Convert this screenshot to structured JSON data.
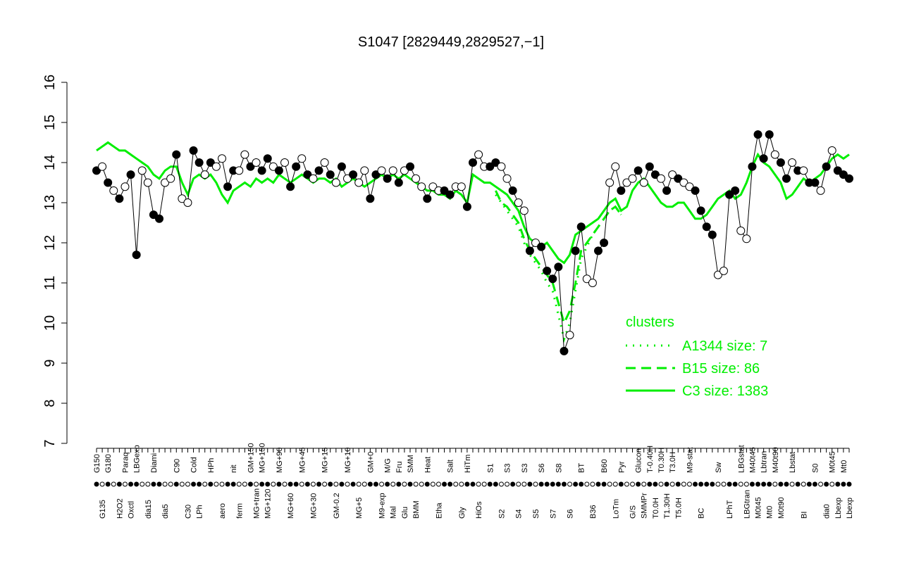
{
  "chart_data": {
    "type": "line",
    "title": "S1047 [2829449,2829527,−1]",
    "legend_title": "clusters",
    "ylim": [
      7,
      16
    ],
    "yticks": [
      7,
      8,
      9,
      10,
      11,
      12,
      13,
      14,
      15,
      16
    ],
    "categories": [
      "G150",
      "G135",
      "G180",
      null,
      "H2O2",
      "Paraq",
      "Oxctl",
      "LBGexp",
      null,
      "dia15",
      "Diami",
      null,
      "dia5",
      null,
      "C90",
      null,
      "C30",
      "Cold",
      "LPh",
      null,
      "HPh",
      null,
      "aero",
      null,
      "nit",
      "ferm",
      null,
      "GM+150",
      "MG+tran",
      "MG+150",
      "MG+120",
      null,
      "MG+90",
      null,
      "MG+60",
      null,
      "MG+45",
      null,
      "MG+30",
      null,
      "MG+15",
      null,
      "GM-0.2",
      null,
      "MG+10",
      null,
      "MG+5",
      null,
      "GM+0",
      null,
      "M9-exp",
      "M/G",
      "Mal",
      "Fru",
      "Glu",
      "SMM",
      "BMM",
      null,
      "Heat",
      null,
      "Etha",
      null,
      "Salt",
      null,
      "Gly",
      "HiTm",
      null,
      "HiOs",
      null,
      "S1",
      null,
      "S2",
      "S3",
      null,
      "S4",
      "S3",
      null,
      "S5",
      "S6",
      null,
      "S7",
      "S8",
      null,
      "S6",
      null,
      "BT",
      null,
      "B36",
      null,
      "B60",
      null,
      "LoTm",
      "Pyr",
      null,
      "G/S",
      "Glucon",
      "SMMPr",
      "T-0.40H",
      "T0.0H",
      "T0.30H",
      "T1.30H",
      "T3.0H",
      "T5.0H",
      null,
      "M9-stat",
      null,
      "BC",
      null,
      null,
      "Sw",
      null,
      "LPhT",
      null,
      "LBGstat",
      "LBGtran",
      "M40t45",
      "M0t45",
      "Lbtran",
      "Mt0",
      "M40t90",
      "M0t90",
      null,
      "Lbstat",
      null,
      "BI",
      null,
      "S0",
      null,
      "dia0",
      "M0t45",
      "Lbexp",
      "Mt0",
      "Lbexp"
    ],
    "values": [
      13.8,
      13.9,
      13.5,
      13.3,
      13.1,
      13.4,
      13.7,
      11.7,
      13.8,
      13.5,
      12.7,
      12.6,
      13.5,
      13.6,
      14.2,
      13.1,
      13.0,
      14.3,
      14.0,
      13.7,
      14.0,
      13.9,
      14.1,
      13.4,
      13.8,
      13.8,
      14.2,
      13.9,
      14.0,
      13.8,
      14.1,
      13.9,
      13.8,
      14.0,
      13.4,
      13.9,
      14.1,
      13.7,
      13.6,
      13.8,
      14.0,
      13.7,
      13.5,
      13.9,
      13.6,
      13.7,
      13.5,
      13.8,
      13.1,
      13.7,
      13.8,
      13.6,
      13.8,
      13.5,
      13.8,
      13.9,
      13.6,
      13.4,
      13.1,
      13.4,
      13.3,
      13.3,
      13.2,
      13.4,
      13.4,
      12.9,
      14.0,
      14.2,
      13.9,
      13.9,
      14.0,
      13.9,
      13.6,
      13.3,
      13.0,
      12.8,
      11.8,
      12.0,
      11.9,
      11.3,
      11.1,
      11.4,
      9.3,
      9.7,
      11.8,
      12.4,
      11.1,
      11.0,
      11.8,
      12.0,
      13.5,
      13.9,
      13.3,
      13.5,
      13.6,
      13.8,
      13.5,
      13.9,
      13.7,
      13.6,
      13.3,
      13.7,
      13.6,
      13.5,
      13.4,
      13.3,
      12.8,
      12.4,
      12.2,
      11.2,
      11.3,
      13.2,
      13.3,
      12.3,
      12.1,
      13.9,
      14.7,
      14.1,
      14.7,
      14.2,
      14.0,
      13.6,
      14.0,
      13.8,
      13.8,
      13.5,
      13.5,
      13.3,
      13.9,
      14.3,
      13.8,
      13.7,
      13.6
    ],
    "filled": [
      true,
      false,
      true,
      false,
      true,
      false,
      true,
      true,
      false,
      false,
      true,
      true,
      false,
      false,
      true,
      false,
      false,
      true,
      true,
      false,
      true,
      false,
      false,
      true,
      true,
      false,
      false,
      true,
      false,
      true,
      true,
      false,
      true,
      false,
      true,
      true,
      false,
      true,
      false,
      true,
      false,
      true,
      false,
      true,
      false,
      true,
      false,
      false,
      true,
      true,
      false,
      true,
      false,
      true,
      false,
      true,
      false,
      false,
      true,
      false,
      false,
      true,
      true,
      false,
      false,
      true,
      true,
      false,
      false,
      true,
      true,
      false,
      false,
      true,
      false,
      false,
      true,
      false,
      true,
      true,
      true,
      true,
      true,
      false,
      true,
      true,
      false,
      false,
      true,
      true,
      false,
      false,
      true,
      false,
      false,
      true,
      false,
      true,
      true,
      false,
      true,
      false,
      true,
      false,
      false,
      true,
      true,
      true,
      true,
      false,
      false,
      true,
      true,
      false,
      false,
      true,
      true,
      true,
      true,
      false,
      true,
      true,
      false,
      true,
      false,
      true,
      true,
      false,
      true,
      false,
      true,
      true,
      true
    ],
    "point_color": "#000000",
    "series": [
      {
        "name": "A1344 size: 7",
        "color": "#00ee00",
        "style": "dotted",
        "values": [
          null,
          null,
          null,
          null,
          null,
          null,
          null,
          null,
          null,
          null,
          null,
          null,
          null,
          null,
          null,
          null,
          null,
          null,
          null,
          null,
          null,
          null,
          null,
          null,
          null,
          null,
          null,
          null,
          null,
          null,
          null,
          null,
          null,
          null,
          null,
          null,
          null,
          null,
          null,
          null,
          null,
          null,
          null,
          null,
          null,
          null,
          null,
          null,
          null,
          null,
          null,
          null,
          null,
          null,
          null,
          null,
          null,
          null,
          null,
          null,
          null,
          null,
          null,
          null,
          null,
          null,
          null,
          null,
          null,
          null,
          13.2,
          13.0,
          12.8,
          12.6,
          12.4,
          12.0,
          11.7,
          11.5,
          11.3,
          11.0,
          10.8,
          10.2,
          9.6,
          10.0,
          10.8,
          11.6,
          11.9,
          12.2,
          12.4,
          12.6,
          12.8,
          12.9,
          12.7,
          null,
          null,
          null,
          null,
          null,
          null,
          null,
          null,
          null,
          null,
          null,
          null,
          null,
          null,
          null,
          null,
          null,
          null,
          null,
          null,
          null,
          null,
          null,
          null,
          null,
          null,
          null,
          null,
          null,
          null,
          null,
          null,
          null,
          null,
          null,
          null,
          null,
          null,
          null,
          null
        ]
      },
      {
        "name": "B15 size: 86",
        "color": "#00ee00",
        "style": "dashed",
        "values": [
          null,
          null,
          null,
          null,
          null,
          null,
          null,
          null,
          null,
          null,
          null,
          null,
          null,
          null,
          null,
          null,
          null,
          null,
          null,
          null,
          null,
          null,
          null,
          null,
          null,
          null,
          null,
          null,
          null,
          null,
          null,
          null,
          null,
          null,
          null,
          null,
          null,
          null,
          null,
          null,
          null,
          null,
          null,
          null,
          null,
          null,
          null,
          null,
          null,
          null,
          null,
          null,
          null,
          null,
          null,
          null,
          null,
          null,
          null,
          null,
          null,
          null,
          null,
          null,
          null,
          null,
          null,
          null,
          null,
          null,
          13.3,
          13.0,
          12.9,
          12.7,
          12.5,
          12.1,
          11.8,
          11.6,
          11.4,
          11.2,
          11.0,
          10.5,
          10.0,
          10.3,
          11.0,
          11.8,
          12.0,
          12.2,
          12.4,
          12.6,
          12.8,
          12.9,
          12.7,
          null,
          null,
          null,
          null,
          null,
          null,
          null,
          null,
          null,
          null,
          null,
          null,
          null,
          null,
          null,
          null,
          null,
          null,
          null,
          null,
          null,
          null,
          null,
          null,
          null,
          null,
          null,
          null,
          null,
          null,
          null,
          null,
          null,
          null,
          null,
          null,
          null,
          null,
          null,
          null
        ]
      },
      {
        "name": "C3 size: 1383",
        "color": "#00ee00",
        "style": "solid",
        "values": [
          14.3,
          14.4,
          14.5,
          14.4,
          14.3,
          14.3,
          14.2,
          14.1,
          14.0,
          13.9,
          13.7,
          13.6,
          13.8,
          13.9,
          13.9,
          13.5,
          13.2,
          13.6,
          13.7,
          13.6,
          13.7,
          13.5,
          13.2,
          13.0,
          13.3,
          13.4,
          13.5,
          13.4,
          13.6,
          13.5,
          13.6,
          13.5,
          13.7,
          13.6,
          13.5,
          13.6,
          13.7,
          13.6,
          13.5,
          13.6,
          13.6,
          13.5,
          13.6,
          13.4,
          13.5,
          13.6,
          13.5,
          13.4,
          13.5,
          13.6,
          13.7,
          13.6,
          13.7,
          13.6,
          13.7,
          13.6,
          13.5,
          13.4,
          13.3,
          13.3,
          13.2,
          13.2,
          13.1,
          13.3,
          13.2,
          13.0,
          13.7,
          13.6,
          13.5,
          13.5,
          13.4,
          13.3,
          13.2,
          13.0,
          12.8,
          12.4,
          12.1,
          12.0,
          11.9,
          12.0,
          11.8,
          11.6,
          11.5,
          11.7,
          12.2,
          12.3,
          12.4,
          12.5,
          12.6,
          12.8,
          13.0,
          13.1,
          12.8,
          12.9,
          13.3,
          13.5,
          13.6,
          13.4,
          13.2,
          13.0,
          12.9,
          12.9,
          13.0,
          13.0,
          12.8,
          12.6,
          12.6,
          12.7,
          12.9,
          13.1,
          13.2,
          13.3,
          13.1,
          13.2,
          13.5,
          13.9,
          14.2,
          14.0,
          13.9,
          13.7,
          13.5,
          13.1,
          13.2,
          13.4,
          13.6,
          13.5,
          13.6,
          13.7,
          13.9,
          14.1,
          14.2,
          14.1,
          14.2
        ]
      }
    ]
  }
}
